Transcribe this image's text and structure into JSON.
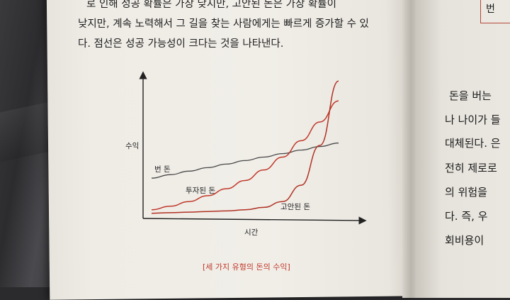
{
  "body_text": {
    "lines": [
      "로 인해 성공 확률은 가장 낮지만, 고안된 돈은 가장 확률이",
      "낮지만, 계속 노력해서 그 길을 찾는 사람에게는 빠르게 증가할 수 있",
      "다. 점선은 성공 가능성이 크다는 것을 나타낸다."
    ]
  },
  "chart_data": {
    "type": "line",
    "title": "",
    "xlabel": "시간",
    "ylabel": "수익",
    "x": [
      0,
      1,
      2,
      3,
      4,
      5,
      6,
      7,
      8,
      9,
      10
    ],
    "series": [
      {
        "name": "번 돈",
        "values": [
          3.2,
          3.5,
          3.8,
          4.1,
          4.4,
          4.7,
          5.0,
          5.3,
          5.6,
          5.9,
          6.2
        ]
      },
      {
        "name": "투자된 돈",
        "values": [
          0.5,
          0.8,
          1.2,
          1.7,
          2.3,
          3.0,
          3.9,
          5.0,
          6.4,
          8.0,
          9.8
        ]
      },
      {
        "name": "고안된 돈",
        "values": [
          0.2,
          0.25,
          0.3,
          0.35,
          0.4,
          0.5,
          0.7,
          1.2,
          2.6,
          6.0,
          11.5
        ]
      }
    ],
    "xlim": [
      0,
      11
    ],
    "ylim": [
      0,
      12
    ],
    "grid": false,
    "legend": "inline labels",
    "caption": "[세 가지 유형의 돈의 수익]",
    "colors": {
      "번 돈": "#4a4a4a",
      "투자된 돈": "#c0392b",
      "고안된 돈": "#b03224"
    }
  },
  "right_page": {
    "tab_label": "번",
    "lines": [
      "돈을 버는",
      "나 나이가 들",
      "대체된다. 은",
      "전히 제로로",
      "의 위험을",
      "다. 즉, 우",
      "회비용이"
    ]
  }
}
